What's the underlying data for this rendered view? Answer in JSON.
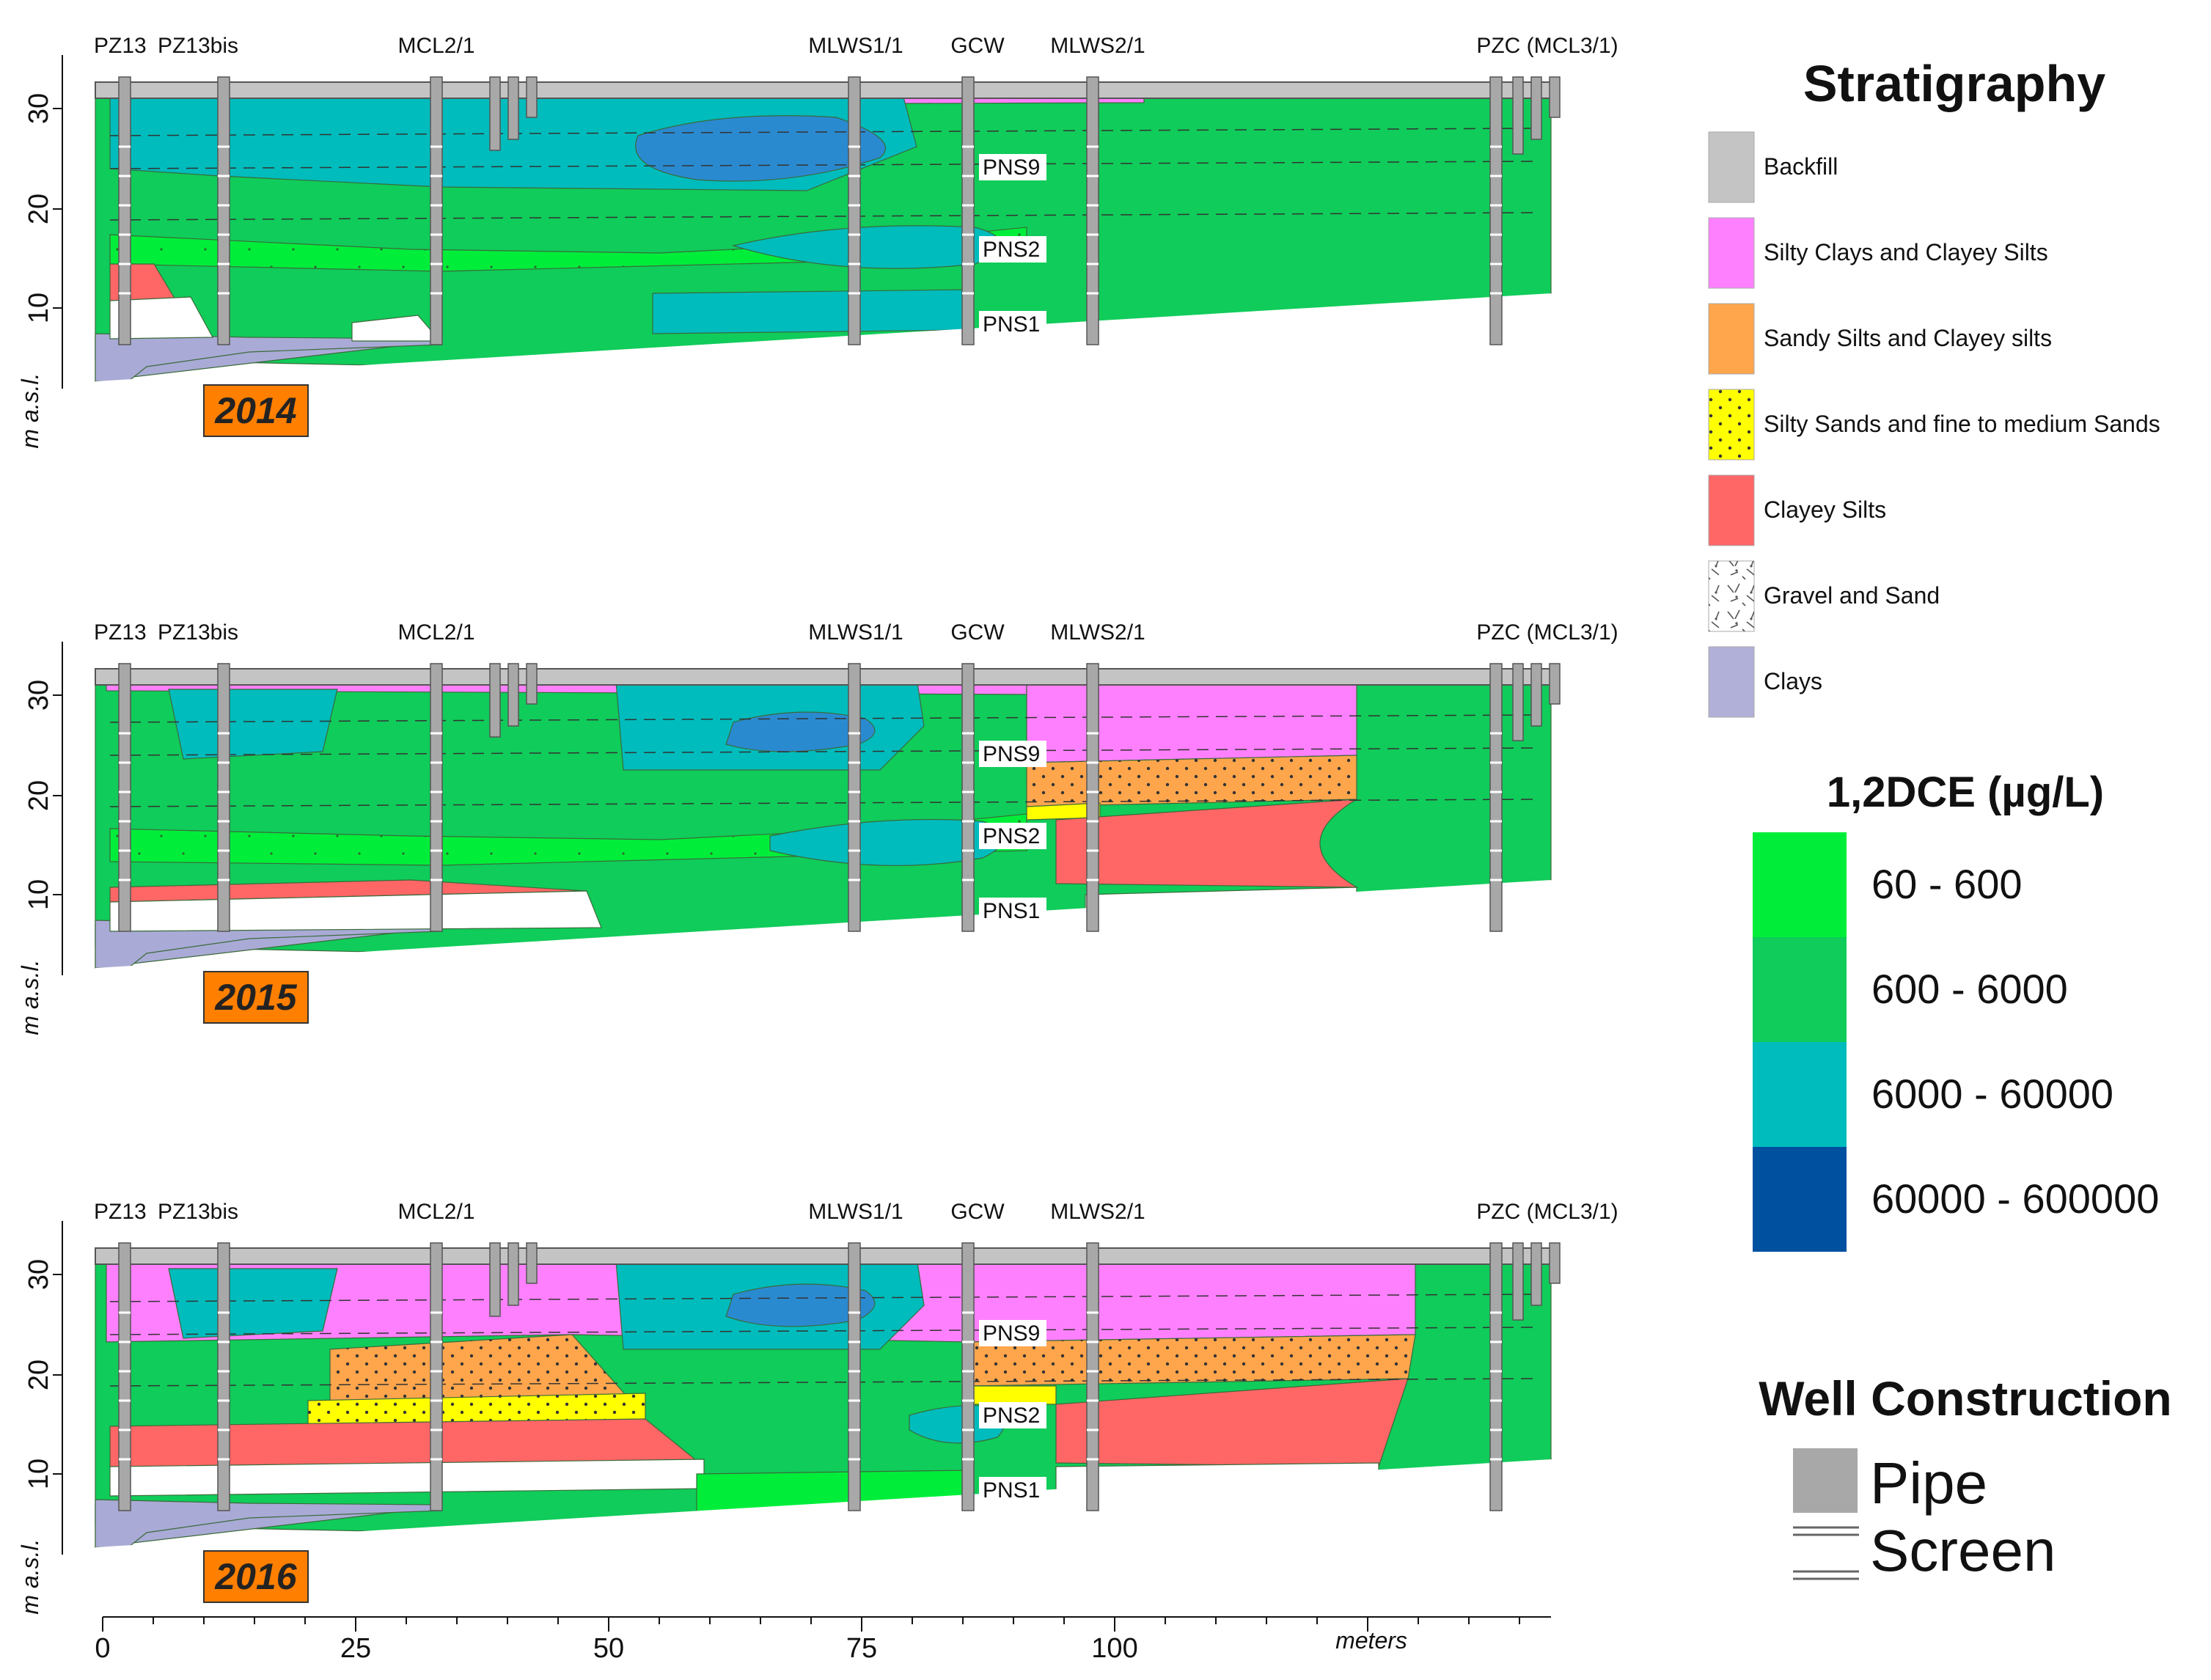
{
  "panels": [
    {
      "year": "2014",
      "wells": [
        "PZ13",
        "PZ13bis",
        "MCL2/1",
        "MLWS1/1",
        "GCW",
        "MLWS2/1",
        "PZC (MCL3/1)"
      ],
      "pns": [
        "PNS9",
        "PNS2",
        "PNS1"
      ],
      "y_ticks": [
        "30",
        "20",
        "10"
      ],
      "y_label": "m a.s.l."
    },
    {
      "year": "2015",
      "wells": [
        "PZ13",
        "PZ13bis",
        "MCL2/1",
        "MLWS1/1",
        "GCW",
        "MLWS2/1",
        "PZC (MCL3/1)"
      ],
      "pns": [
        "PNS9",
        "PNS2",
        "PNS1"
      ],
      "y_ticks": [
        "30",
        "20",
        "10"
      ],
      "y_label": "m a.s.l."
    },
    {
      "year": "2016",
      "wells": [
        "PZ13",
        "PZ13bis",
        "MCL2/1",
        "MLWS1/1",
        "GCW",
        "MLWS2/1",
        "PZC (MCL3/1)"
      ],
      "pns": [
        "PNS9",
        "PNS2",
        "PNS1"
      ],
      "y_ticks": [
        "30",
        "20",
        "10"
      ],
      "y_label": "m a.s.l."
    }
  ],
  "x_axis": {
    "ticks": [
      "0",
      "25",
      "50",
      "75",
      "100"
    ],
    "label": "meters"
  },
  "stratigraphy": {
    "title": "Stratigraphy",
    "items": [
      {
        "label": "Backfill",
        "color": "#c4c4c4"
      },
      {
        "label": "Silty Clays and Clayey Silts",
        "color": "#ff80ff"
      },
      {
        "label": "Sandy Silts and Clayey silts",
        "color": "#ffa64d"
      },
      {
        "label": "Silty Sands and fine to medium Sands",
        "color": "#ffff00"
      },
      {
        "label": "Clayey Silts",
        "color": "#ff6666"
      },
      {
        "label": "Gravel and Sand",
        "color": "#ffffff"
      },
      {
        "label": "Clays",
        "color": "#b0b0d8"
      }
    ]
  },
  "concentration": {
    "title": "1,2DCE (µg/L)",
    "classes": [
      {
        "range": "60 - 600",
        "color": "#00ee3a"
      },
      {
        "range": "600 - 6000",
        "color": "#10cc5a"
      },
      {
        "range": "6000 - 60000",
        "color": "#00bcbc"
      },
      {
        "range": "60000 - 600000",
        "color": "#0050a0"
      }
    ]
  },
  "well_construction": {
    "title": "Well Construction",
    "items": [
      {
        "label": "Pipe",
        "color": "#a8a8a8"
      },
      {
        "label": "Screen",
        "color": "#ffffff"
      }
    ]
  }
}
